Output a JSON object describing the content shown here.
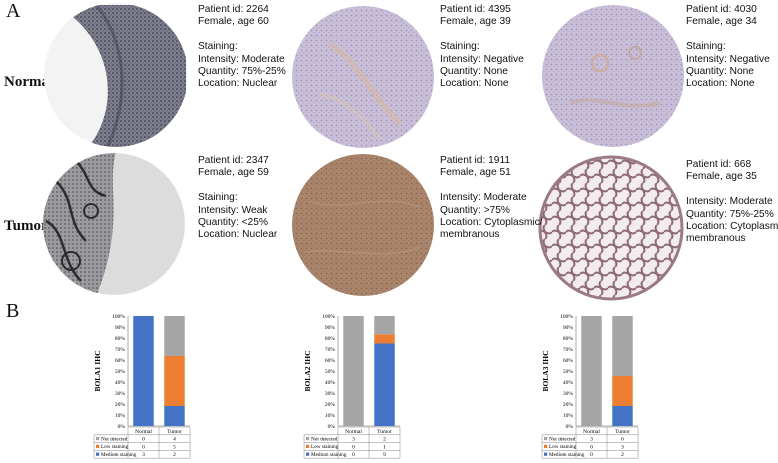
{
  "panel_a_label": "A",
  "panel_b_label": "B",
  "row_labels": {
    "normal": "Normal",
    "tumor": "Tumor"
  },
  "cores": [
    {
      "patient": "Patient id: 2264",
      "sex_age": "Female, age 60",
      "staining_header": "Staining:",
      "intensity": "Intensity: Moderate",
      "quantity": "Quantity: 75%-25%",
      "location": "Location: Nuclear",
      "location2": ""
    },
    {
      "patient": "Patient id: 4395",
      "sex_age": "Female, age 39",
      "staining_header": "Staining:",
      "intensity": "Intensity: Negative",
      "quantity": "Quantity: None",
      "location": "Location: None",
      "location2": ""
    },
    {
      "patient": "Patient id: 4030",
      "sex_age": "Female, age 34",
      "staining_header": "Staining:",
      "intensity": "Intensity: Negative",
      "quantity": "Quantity: None",
      "location": "Location: None",
      "location2": ""
    },
    {
      "patient": "Patient id: 2347",
      "sex_age": "Female, age 59",
      "staining_header": "Staining:",
      "intensity": "Intensity: Weak",
      "quantity": "Quantity: <25%",
      "location": "Location: Nuclear",
      "location2": ""
    },
    {
      "patient": "Patient id: 1911",
      "sex_age": "Female, age 51",
      "staining_header": "",
      "intensity": "Intensity: Moderate",
      "quantity": "Quantity: >75%",
      "location": "Location: Cytoplasmic/",
      "location2": "membranous"
    },
    {
      "patient": "Patient id: 668",
      "sex_age": "Female, age 35",
      "staining_header": "",
      "intensity": "Intensity: Moderate",
      "quantity": "Quantity: 75%-25%",
      "location": "Location: Cytoplasmic/",
      "location2": "membranous"
    }
  ],
  "colors": {
    "medium_staining": "#4472C4",
    "low_staining": "#ED7D31",
    "not_detected": "#A5A5A5"
  },
  "chart_data": [
    {
      "type": "bar",
      "stacked": true,
      "ylabel": "BOLA1 IHC",
      "ylim": [
        0,
        100
      ],
      "yticks": [
        "0%",
        "10%",
        "20%",
        "30%",
        "40%",
        "50%",
        "60%",
        "70%",
        "80%",
        "90%",
        "100%"
      ],
      "categories": [
        "Normal",
        "Tumor"
      ],
      "series": [
        {
          "name": "Medium staining",
          "values": [
            3,
            2
          ]
        },
        {
          "name": "Low staining",
          "values": [
            0,
            5
          ]
        },
        {
          "name": "Not detected",
          "values": [
            0,
            4
          ]
        }
      ]
    },
    {
      "type": "bar",
      "stacked": true,
      "ylabel": "BOLA2 IHC",
      "ylim": [
        0,
        100
      ],
      "yticks": [
        "0%",
        "10%",
        "20%",
        "30%",
        "40%",
        "50%",
        "60%",
        "70%",
        "80%",
        "90%",
        "100%"
      ],
      "categories": [
        "Normal",
        "Tumor"
      ],
      "series": [
        {
          "name": "Medium staining",
          "values": [
            0,
            9
          ]
        },
        {
          "name": "Low staining",
          "values": [
            0,
            1
          ]
        },
        {
          "name": "Not detected",
          "values": [
            3,
            2
          ]
        }
      ]
    },
    {
      "type": "bar",
      "stacked": true,
      "ylabel": "BOLA3 IHC",
      "ylim": [
        0,
        100
      ],
      "yticks": [
        "0%",
        "10%",
        "20%",
        "30%",
        "40%",
        "50%",
        "60%",
        "70%",
        "80%",
        "90%",
        "100%"
      ],
      "categories": [
        "Normal",
        "Tumor"
      ],
      "series": [
        {
          "name": "Medium staining",
          "values": [
            0,
            2
          ]
        },
        {
          "name": "Low staining",
          "values": [
            0,
            3
          ]
        },
        {
          "name": "Not detected",
          "values": [
            3,
            6
          ]
        }
      ]
    }
  ]
}
